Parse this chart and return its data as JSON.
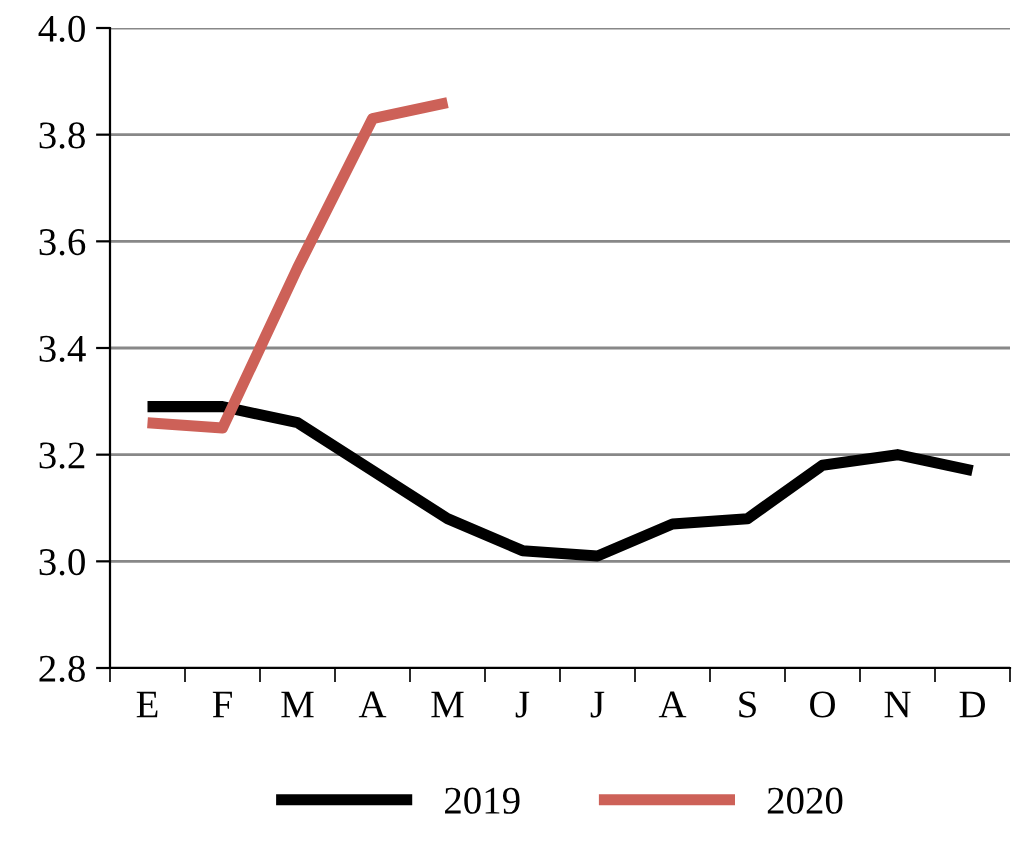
{
  "chart_data": {
    "type": "line",
    "categories": [
      "E",
      "F",
      "M",
      "A",
      "M",
      "J",
      "J",
      "A",
      "S",
      "O",
      "N",
      "D"
    ],
    "series": [
      {
        "name": "2019",
        "color": "#000000",
        "values": [
          3.29,
          3.29,
          3.26,
          3.17,
          3.08,
          3.02,
          3.01,
          3.07,
          3.08,
          3.18,
          3.2,
          3.17
        ]
      },
      {
        "name": "2020",
        "color": "#cd6158",
        "values": [
          3.26,
          3.25,
          3.55,
          3.83,
          3.86,
          null,
          null,
          null,
          null,
          null,
          null,
          null
        ]
      }
    ],
    "ylim": [
      2.8,
      4.0
    ],
    "yticks": [
      {
        "value": 2.8,
        "label": "2.8"
      },
      {
        "value": 3.0,
        "label": "3.0"
      },
      {
        "value": 3.2,
        "label": "3.2"
      },
      {
        "value": 3.4,
        "label": "3.4"
      },
      {
        "value": 3.6,
        "label": "3.6"
      },
      {
        "value": 3.8,
        "label": "3.8"
      },
      {
        "value": 4.0,
        "label": "4.0"
      }
    ],
    "grid": "y",
    "legend": "bottom",
    "marker": "none",
    "line_style": "solid"
  }
}
